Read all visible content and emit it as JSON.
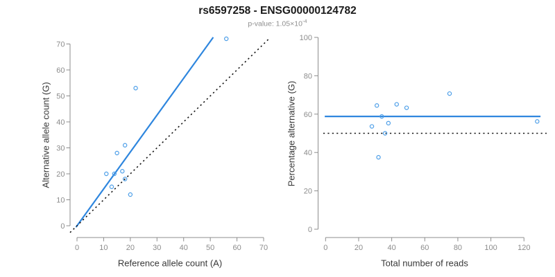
{
  "header": {
    "title": "rs6597258 - ENSG00000124782",
    "subtitle_base": "p-value: 1.05×10",
    "subtitle_exponent": "-4"
  },
  "colors": {
    "regression_blue": "#2E86DE",
    "point_blue": "#4C9EE8",
    "reference_black": "#151515",
    "axis_gray": "#8C8C8C",
    "title_color": "#1B1B1B",
    "subtitle_gray": "#8E8E8E",
    "axis_title_color": "#383838",
    "background": "#FFFFFF"
  },
  "chart_data": [
    {
      "type": "scatter",
      "xlabel": "Reference allele count (A)",
      "ylabel": "Alternative allele count (G)",
      "xlim": [
        0,
        72
      ],
      "ylim": [
        0,
        72
      ],
      "xticks": [
        0,
        10,
        20,
        30,
        40,
        50,
        60,
        70
      ],
      "yticks": [
        0,
        10,
        20,
        30,
        40,
        50,
        60,
        70
      ],
      "grid": false,
      "points": [
        [
          11,
          20
        ],
        [
          13,
          15
        ],
        [
          14,
          20
        ],
        [
          15,
          28
        ],
        [
          17,
          21
        ],
        [
          18,
          18
        ],
        [
          18,
          31
        ],
        [
          20,
          12
        ],
        [
          22,
          53
        ],
        [
          56,
          72
        ]
      ],
      "lines": [
        {
          "name": "regression-line",
          "type": "ab",
          "a": 0,
          "b": 1.42,
          "x1": -0.4,
          "x2": 51.1,
          "style": "solid"
        },
        {
          "name": "identity-line",
          "type": "ab",
          "a": 0,
          "b": 1,
          "x1": -2.6,
          "x2": 72.1,
          "style": "dotted"
        }
      ]
    },
    {
      "type": "scatter",
      "xlabel": "Total number of reads",
      "ylabel": "Percentage alternative (G)",
      "xlim": [
        0,
        134
      ],
      "ylim": [
        0,
        100
      ],
      "xticks": [
        0,
        20,
        40,
        60,
        80,
        100,
        120
      ],
      "yticks": [
        0,
        20,
        40,
        60,
        80,
        100
      ],
      "grid": false,
      "points": [
        [
          28,
          53.6
        ],
        [
          31,
          64.5
        ],
        [
          32,
          37.5
        ],
        [
          34,
          58.8
        ],
        [
          36,
          50
        ],
        [
          38,
          55.3
        ],
        [
          43,
          65.1
        ],
        [
          49,
          63.3
        ],
        [
          75,
          70.7
        ],
        [
          128,
          56.2
        ]
      ],
      "lines": [
        {
          "name": "mean-percentage-line",
          "type": "h",
          "y": 58.8,
          "x1": -0.5,
          "x2": 130,
          "style": "solid"
        },
        {
          "name": "fifty-percent-line",
          "type": "h",
          "y": 50,
          "x1": -1.4,
          "x2": 133.7,
          "style": "dotted"
        }
      ]
    }
  ]
}
